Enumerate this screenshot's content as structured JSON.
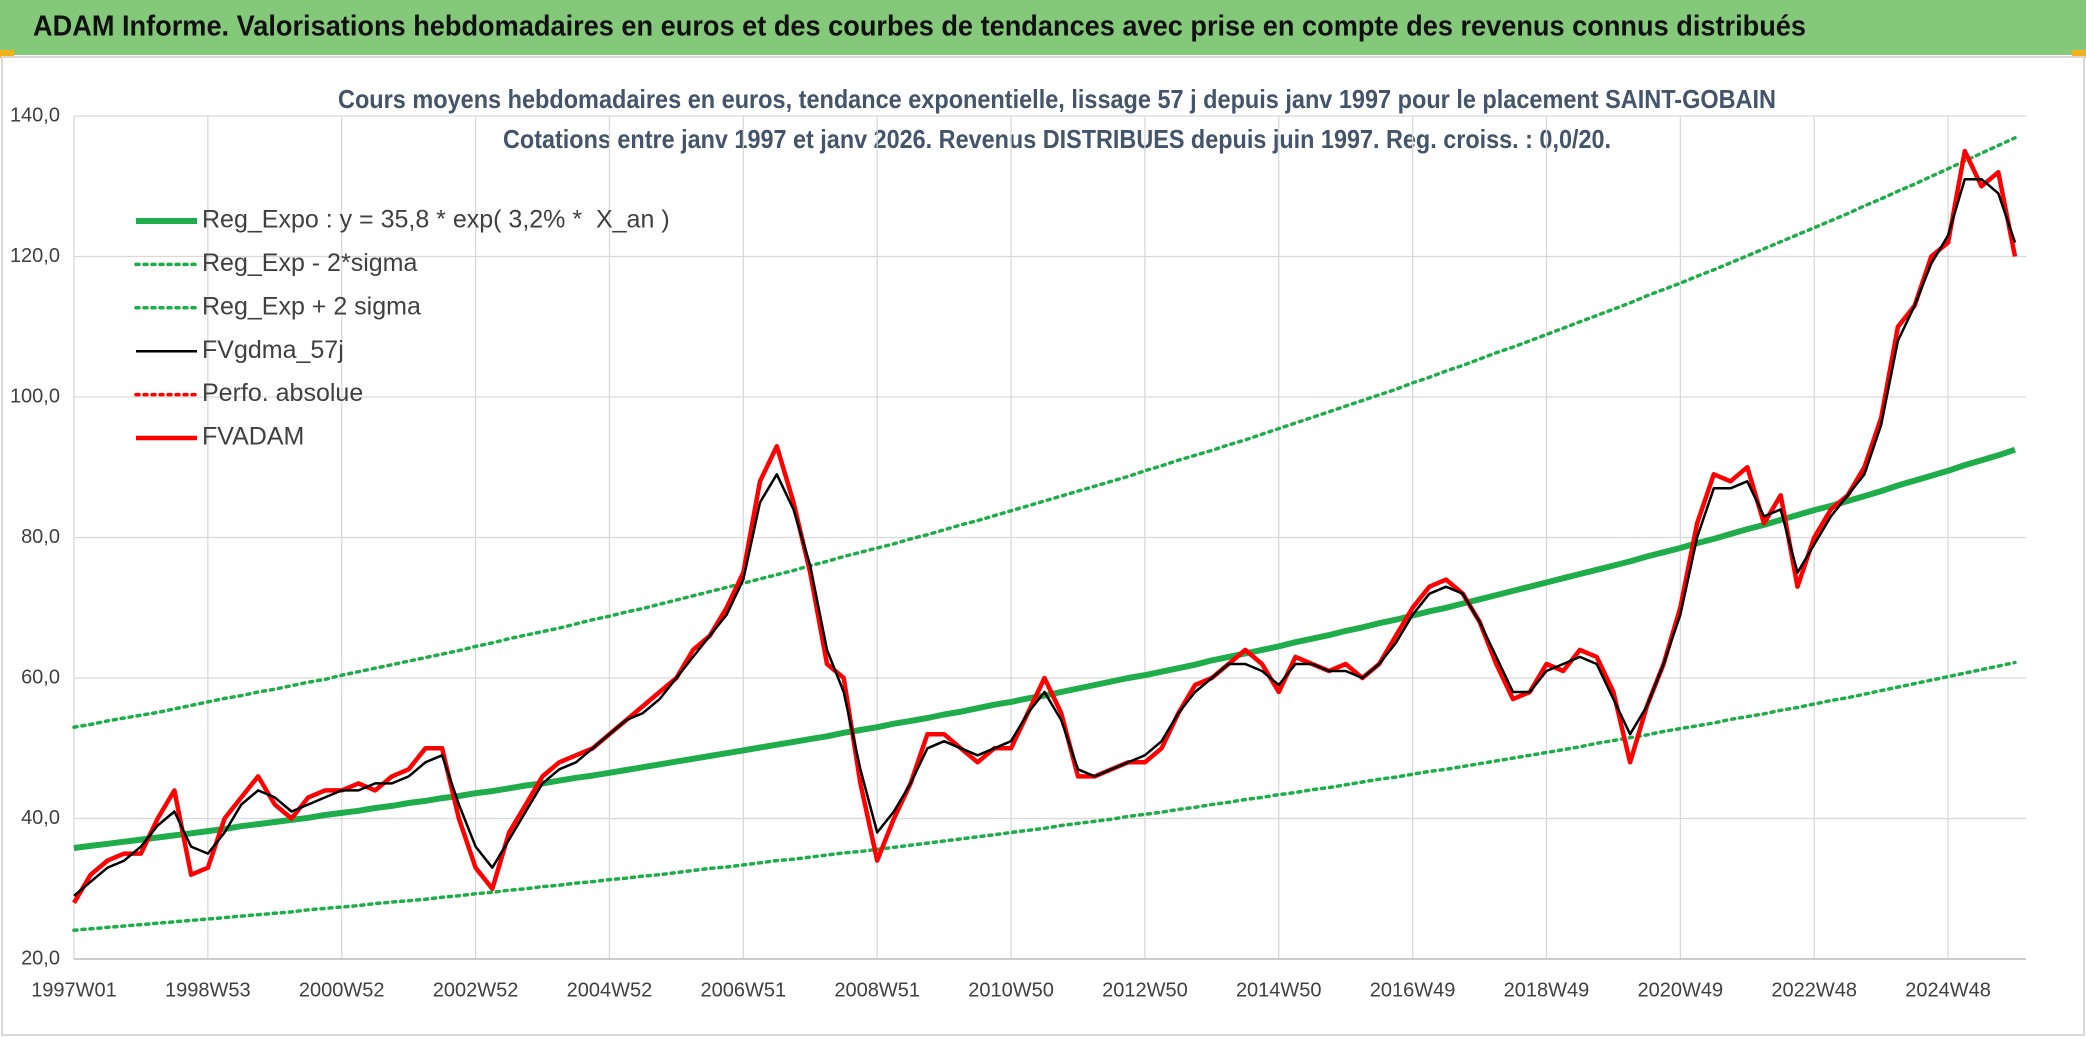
{
  "header": "ADAM Informe. Valorisations hebdomadaires en euros et des courbes de tendances avec prise en compte des revenus connus distribués",
  "chart_data": {
    "type": "line",
    "title": "Cours moyens hebdomadaires en euros, tendance exponentielle, lissage 57 j depuis janv 1997 pour le placement SAINT-GOBAIN",
    "subtitle": "Cotations entre janv 1997 et janv 2026. Revenus DISTRIBUES depuis juin 1997. Reg. croiss. : 0,0/20.",
    "categories": [
      "1997W01",
      null,
      null,
      null,
      null,
      null,
      null,
      null,
      "1998W53",
      null,
      null,
      null,
      null,
      null,
      null,
      null,
      "2000W52",
      null,
      null,
      null,
      null,
      null,
      null,
      null,
      "2002W52",
      null,
      null,
      null,
      null,
      null,
      null,
      null,
      "2004W52",
      null,
      null,
      null,
      null,
      null,
      null,
      null,
      "2006W51",
      null,
      null,
      null,
      null,
      null,
      null,
      null,
      "2008W51",
      null,
      null,
      null,
      null,
      null,
      null,
      null,
      "2010W50",
      null,
      null,
      null,
      null,
      null,
      null,
      null,
      "2012W50",
      null,
      null,
      null,
      null,
      null,
      null,
      null,
      "2014W50",
      null,
      null,
      null,
      null,
      null,
      null,
      null,
      "2016W49",
      null,
      null,
      null,
      null,
      null,
      null,
      null,
      "2018W49",
      null,
      null,
      null,
      null,
      null,
      null,
      null,
      "2020W49",
      null,
      null,
      null,
      null,
      null,
      null,
      null,
      "2022W48",
      null,
      null,
      null,
      null,
      null,
      null,
      null,
      "2024W48",
      null,
      null,
      null,
      null
    ],
    "ylim": [
      20,
      140
    ],
    "yticks": [
      {
        "value": 20,
        "label": "20,0"
      },
      {
        "value": 40,
        "label": "40,0"
      },
      {
        "value": 60,
        "label": "60,0"
      },
      {
        "value": 80,
        "label": "80,0"
      },
      {
        "value": 100,
        "label": "100,0"
      },
      {
        "value": 120,
        "label": "120,0"
      },
      {
        "value": 140,
        "label": "140,0"
      }
    ],
    "grid": true,
    "legend": "top-left",
    "series": [
      {
        "name": "Reg_Expo : y = 35,8 * exp( 3,2% *  X_an )",
        "color": "#1fad4b",
        "style": "solid",
        "weight": "bold",
        "values": [
          35.8,
          36.1,
          36.4,
          36.7,
          37.0,
          37.3,
          37.6,
          37.9,
          38.2,
          38.5,
          38.9,
          39.2,
          39.5,
          39.8,
          40.1,
          40.5,
          40.8,
          41.1,
          41.5,
          41.8,
          42.2,
          42.5,
          42.9,
          43.2,
          43.6,
          43.9,
          44.3,
          44.7,
          45.0,
          45.4,
          45.8,
          46.1,
          46.5,
          46.9,
          47.3,
          47.7,
          48.1,
          48.5,
          48.9,
          49.3,
          49.7,
          50.1,
          50.5,
          50.9,
          51.3,
          51.7,
          52.2,
          52.6,
          53.0,
          53.5,
          53.9,
          54.3,
          54.8,
          55.2,
          55.7,
          56.2,
          56.6,
          57.1,
          57.5,
          58.0,
          58.5,
          59.0,
          59.5,
          60.0,
          60.4,
          60.9,
          61.4,
          61.9,
          62.5,
          63.0,
          63.5,
          64.0,
          64.5,
          65.1,
          65.6,
          66.1,
          66.7,
          67.2,
          67.8,
          68.3,
          68.9,
          69.5,
          70.0,
          70.6,
          71.2,
          71.8,
          72.4,
          73.0,
          73.6,
          74.2,
          74.8,
          75.4,
          76.0,
          76.6,
          77.3,
          77.9,
          78.5,
          79.2,
          79.8,
          80.5,
          81.2,
          81.8,
          82.5,
          83.2,
          83.9,
          84.5,
          85.2,
          85.9,
          86.6,
          87.4,
          88.1,
          88.8,
          89.5,
          90.3,
          91.0,
          91.7,
          92.5
        ]
      },
      {
        "name": "Reg_Exp - 2*sigma",
        "color": "#1fad4b",
        "style": "dotted",
        "weight": "normal",
        "values": [
          24.1,
          24.3,
          24.5,
          24.7,
          24.9,
          25.1,
          25.3,
          25.5,
          25.7,
          25.9,
          26.1,
          26.3,
          26.5,
          26.7,
          27.0,
          27.2,
          27.4,
          27.6,
          27.9,
          28.1,
          28.3,
          28.5,
          28.8,
          29.0,
          29.3,
          29.5,
          29.8,
          30.0,
          30.3,
          30.5,
          30.8,
          31.0,
          31.3,
          31.5,
          31.8,
          32.0,
          32.3,
          32.6,
          32.9,
          33.1,
          33.4,
          33.7,
          34.0,
          34.2,
          34.5,
          34.8,
          35.1,
          35.3,
          35.6,
          35.9,
          36.2,
          36.5,
          36.8,
          37.1,
          37.4,
          37.7,
          38.0,
          38.3,
          38.6,
          39.0,
          39.3,
          39.6,
          39.9,
          40.3,
          40.6,
          40.9,
          41.3,
          41.6,
          42.0,
          42.3,
          42.7,
          43.0,
          43.4,
          43.7,
          44.1,
          44.4,
          44.8,
          45.2,
          45.6,
          45.9,
          46.3,
          46.7,
          47.0,
          47.4,
          47.8,
          48.2,
          48.6,
          49.0,
          49.4,
          49.8,
          50.2,
          50.7,
          51.1,
          51.5,
          51.9,
          52.4,
          52.8,
          53.2,
          53.6,
          54.1,
          54.5,
          54.9,
          55.4,
          55.8,
          56.3,
          56.8,
          57.2,
          57.7,
          58.2,
          58.7,
          59.2,
          59.7,
          60.2,
          60.7,
          61.2,
          61.7,
          62.2
        ]
      },
      {
        "name": "Reg_Exp + 2 sigma",
        "color": "#1fad4b",
        "style": "dotted",
        "weight": "normal",
        "values": [
          53.0,
          53.4,
          53.9,
          54.3,
          54.7,
          55.1,
          55.6,
          56.1,
          56.6,
          57.1,
          57.5,
          58.0,
          58.4,
          58.9,
          59.4,
          59.8,
          60.4,
          60.9,
          61.4,
          61.9,
          62.4,
          62.9,
          63.4,
          63.9,
          64.5,
          65.0,
          65.6,
          66.1,
          66.6,
          67.1,
          67.7,
          68.3,
          68.8,
          69.4,
          69.9,
          70.5,
          71.1,
          71.7,
          72.3,
          72.9,
          73.5,
          74.1,
          74.7,
          75.3,
          76.0,
          76.6,
          77.3,
          77.9,
          78.5,
          79.1,
          79.8,
          80.4,
          81.1,
          81.8,
          82.4,
          83.1,
          83.8,
          84.5,
          85.2,
          85.9,
          86.6,
          87.3,
          88.0,
          88.7,
          89.5,
          90.2,
          91.0,
          91.7,
          92.4,
          93.2,
          93.9,
          94.7,
          95.5,
          96.3,
          97.1,
          97.9,
          98.7,
          99.5,
          100.3,
          101.1,
          102.0,
          102.8,
          103.7,
          104.5,
          105.4,
          106.3,
          107.1,
          108.0,
          108.9,
          109.8,
          110.7,
          111.6,
          112.5,
          113.4,
          114.4,
          115.3,
          116.2,
          117.2,
          118.1,
          119.1,
          120.1,
          121.1,
          122.1,
          123.1,
          124.1,
          125.1,
          126.1,
          127.2,
          128.2,
          129.3,
          130.3,
          131.4,
          132.5,
          133.6,
          134.7,
          135.8,
          136.9
        ]
      },
      {
        "name": "FVgdma_57j",
        "color": "#000000",
        "style": "solid",
        "weight": "normal",
        "values": [
          29,
          31,
          33,
          34,
          36,
          39,
          41,
          36,
          35,
          38,
          42,
          44,
          43,
          41,
          42,
          43,
          44,
          44,
          45,
          45,
          46,
          48,
          49,
          42,
          36,
          33,
          37,
          41,
          45,
          47,
          48,
          50,
          52,
          54,
          55,
          57,
          60,
          63,
          66,
          69,
          74,
          85,
          89,
          84,
          76,
          64,
          58,
          47,
          38,
          41,
          45,
          50,
          51,
          50,
          49,
          50,
          51,
          55,
          58,
          54,
          47,
          46,
          47,
          48,
          49,
          51,
          55,
          58,
          60,
          62,
          62,
          61,
          59,
          62,
          62,
          61,
          61,
          60,
          62,
          65,
          69,
          72,
          73,
          72,
          68,
          63,
          58,
          58,
          61,
          62,
          63,
          62,
          57,
          52,
          56,
          62,
          69,
          80,
          87,
          87,
          88,
          83,
          84,
          75,
          79,
          83,
          86,
          89,
          96,
          108,
          113,
          119,
          123,
          131,
          131,
          129,
          122
        ]
      },
      {
        "name": "Perfo. absolue",
        "color": "#ff0000",
        "style": "dotted",
        "weight": "normal"
      },
      {
        "name": "FVADAM",
        "color": "#ff0000",
        "style": "solid",
        "weight": "bold",
        "values": [
          28,
          32,
          34,
          35,
          35,
          40,
          44,
          32,
          33,
          40,
          43,
          46,
          42,
          40,
          43,
          44,
          44,
          45,
          44,
          46,
          47,
          50,
          50,
          40,
          33,
          30,
          38,
          42,
          46,
          48,
          49,
          50,
          52,
          54,
          56,
          58,
          60,
          64,
          66,
          70,
          75,
          88,
          93,
          85,
          75,
          62,
          60,
          45,
          34,
          40,
          45,
          52,
          52,
          50,
          48,
          50,
          50,
          55,
          60,
          55,
          46,
          46,
          47,
          48,
          48,
          50,
          55,
          59,
          60,
          62,
          64,
          62,
          58,
          63,
          62,
          61,
          62,
          60,
          62,
          66,
          70,
          73,
          74,
          72,
          68,
          62,
          57,
          58,
          62,
          61,
          64,
          63,
          58,
          48,
          56,
          62,
          70,
          82,
          89,
          88,
          90,
          82,
          86,
          73,
          80,
          84,
          86,
          90,
          97,
          110,
          113,
          120,
          122,
          135,
          130,
          132,
          120
        ]
      }
    ]
  }
}
